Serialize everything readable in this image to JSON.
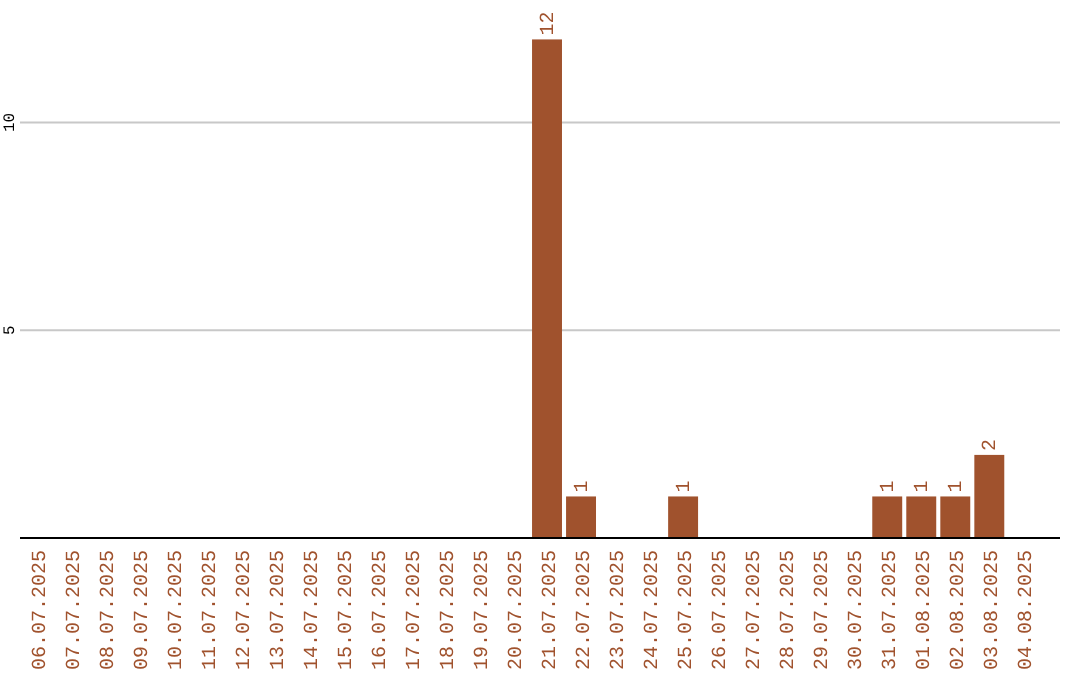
{
  "chart_data": {
    "type": "bar",
    "categories": [
      "06.07.2025",
      "07.07.2025",
      "08.07.2025",
      "09.07.2025",
      "10.07.2025",
      "11.07.2025",
      "12.07.2025",
      "13.07.2025",
      "14.07.2025",
      "15.07.2025",
      "16.07.2025",
      "17.07.2025",
      "18.07.2025",
      "19.07.2025",
      "20.07.2025",
      "21.07.2025",
      "22.07.2025",
      "23.07.2025",
      "24.07.2025",
      "25.07.2025",
      "26.07.2025",
      "27.07.2025",
      "28.07.2025",
      "29.07.2025",
      "30.07.2025",
      "31.07.2025",
      "01.08.2025",
      "02.08.2025",
      "03.08.2025",
      "04.08.2025"
    ],
    "values": [
      0,
      0,
      0,
      0,
      0,
      0,
      0,
      0,
      0,
      0,
      0,
      0,
      0,
      0,
      0,
      12,
      1,
      0,
      0,
      1,
      0,
      0,
      0,
      0,
      0,
      1,
      1,
      1,
      2,
      0
    ],
    "value_labels": [
      null,
      null,
      null,
      null,
      null,
      null,
      null,
      null,
      null,
      null,
      null,
      null,
      null,
      null,
      null,
      "12",
      "1",
      null,
      null,
      "1",
      null,
      null,
      null,
      null,
      null,
      "1",
      "1",
      "1",
      "2",
      null
    ],
    "color": "#a0522d",
    "ylim": [
      0,
      12
    ],
    "yticks": [
      5,
      10
    ],
    "grid": "y"
  }
}
